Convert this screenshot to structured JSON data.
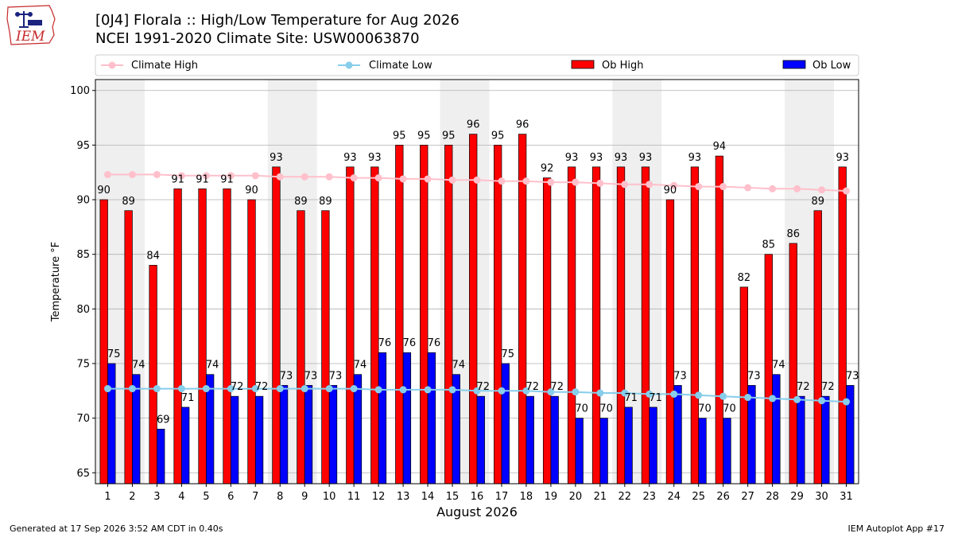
{
  "header": {
    "title_line1": "[0J4] Florala :: High/Low Temperature for Aug 2026",
    "title_line2": "NCEI 1991-2020 Climate Site: USW00063870",
    "logo_text": "IEM"
  },
  "footer": {
    "left": "Generated at 17 Sep 2026 3:52 AM CDT in 0.40s",
    "right": "IEM Autoplot App #17"
  },
  "colors": {
    "ob_high": "#ff0000",
    "ob_low": "#0000ff",
    "climate_high": "#ffc0cb",
    "climate_low": "#87ceeb",
    "weekend_band": "#efefef",
    "grid": "#b0b0b0"
  },
  "chart_data": {
    "type": "bar",
    "xlabel": "August 2026",
    "ylabel": "Temperature °F",
    "ylim": [
      64,
      101
    ],
    "yticks": [
      65,
      70,
      75,
      80,
      85,
      90,
      95,
      100
    ],
    "grid": true,
    "legend_position": "top",
    "categories": [
      "1",
      "2",
      "3",
      "4",
      "5",
      "6",
      "7",
      "8",
      "9",
      "10",
      "11",
      "12",
      "13",
      "14",
      "15",
      "16",
      "17",
      "18",
      "19",
      "20",
      "21",
      "22",
      "23",
      "24",
      "25",
      "26",
      "27",
      "28",
      "29",
      "30",
      "31"
    ],
    "weekend_bands": [
      [
        1,
        2
      ],
      [
        8,
        9
      ],
      [
        15,
        16
      ],
      [
        22,
        23
      ],
      [
        29,
        30
      ]
    ],
    "series": [
      {
        "name": "Ob High",
        "kind": "bar",
        "values": [
          90,
          89,
          84,
          91,
          91,
          91,
          90,
          93,
          89,
          89,
          93,
          93,
          95,
          95,
          95,
          96,
          95,
          96,
          92,
          93,
          93,
          93,
          93,
          90,
          93,
          94,
          82,
          85,
          86,
          89,
          93
        ]
      },
      {
        "name": "Ob Low",
        "kind": "bar",
        "values": [
          75,
          74,
          69,
          71,
          74,
          72,
          72,
          73,
          73,
          73,
          74,
          76,
          76,
          76,
          74,
          72,
          75,
          72,
          72,
          70,
          70,
          71,
          71,
          73,
          70,
          70,
          73,
          74,
          72,
          72,
          73
        ]
      },
      {
        "name": "Climate High",
        "kind": "line",
        "values": [
          92.3,
          92.3,
          92.3,
          92.2,
          92.2,
          92.2,
          92.2,
          92.1,
          92.1,
          92.1,
          92.0,
          92.0,
          91.9,
          91.9,
          91.8,
          91.8,
          91.7,
          91.7,
          91.6,
          91.6,
          91.5,
          91.4,
          91.4,
          91.3,
          91.2,
          91.2,
          91.1,
          91.0,
          91.0,
          90.9,
          90.8
        ]
      },
      {
        "name": "Climate Low",
        "kind": "line",
        "values": [
          72.7,
          72.7,
          72.7,
          72.7,
          72.7,
          72.7,
          72.7,
          72.7,
          72.7,
          72.7,
          72.7,
          72.6,
          72.6,
          72.6,
          72.6,
          72.5,
          72.5,
          72.5,
          72.4,
          72.4,
          72.3,
          72.3,
          72.2,
          72.2,
          72.1,
          72.0,
          71.9,
          71.8,
          71.7,
          71.6,
          71.5
        ]
      }
    ]
  }
}
